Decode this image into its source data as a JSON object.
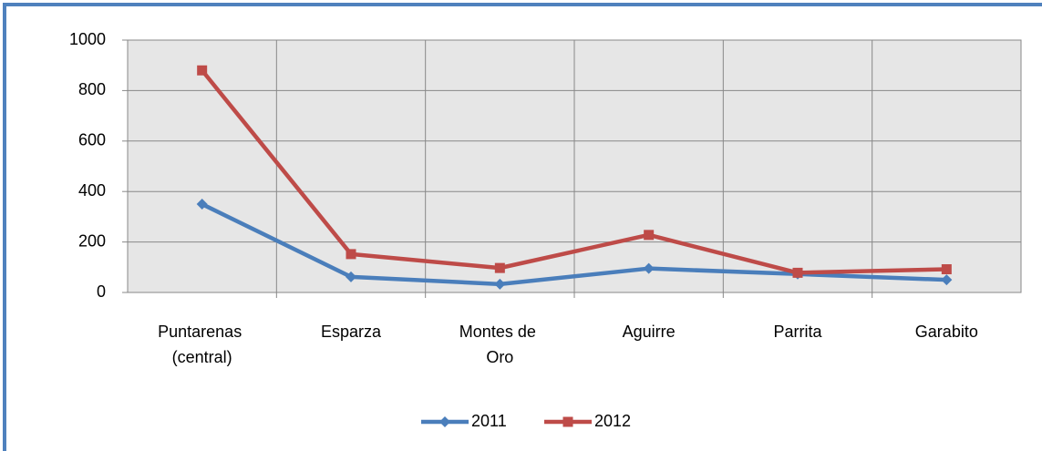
{
  "chart_data": {
    "type": "line",
    "categories": [
      "Puntarenas (central)",
      "Esparza",
      "Montes de Oro",
      "Aguirre",
      "Parrita",
      "Garabito"
    ],
    "series": [
      {
        "name": "2011",
        "color": "#4a7ebb",
        "values": [
          350,
          62,
          33,
          95,
          73,
          50
        ]
      },
      {
        "name": "2012",
        "color": "#be4b48",
        "values": [
          880,
          152,
          97,
          228,
          78,
          92
        ]
      }
    ],
    "ylim": [
      0,
      1000
    ],
    "yticks": [
      0,
      200,
      400,
      600,
      800,
      1000
    ],
    "grid": true,
    "legend": "bottom"
  }
}
